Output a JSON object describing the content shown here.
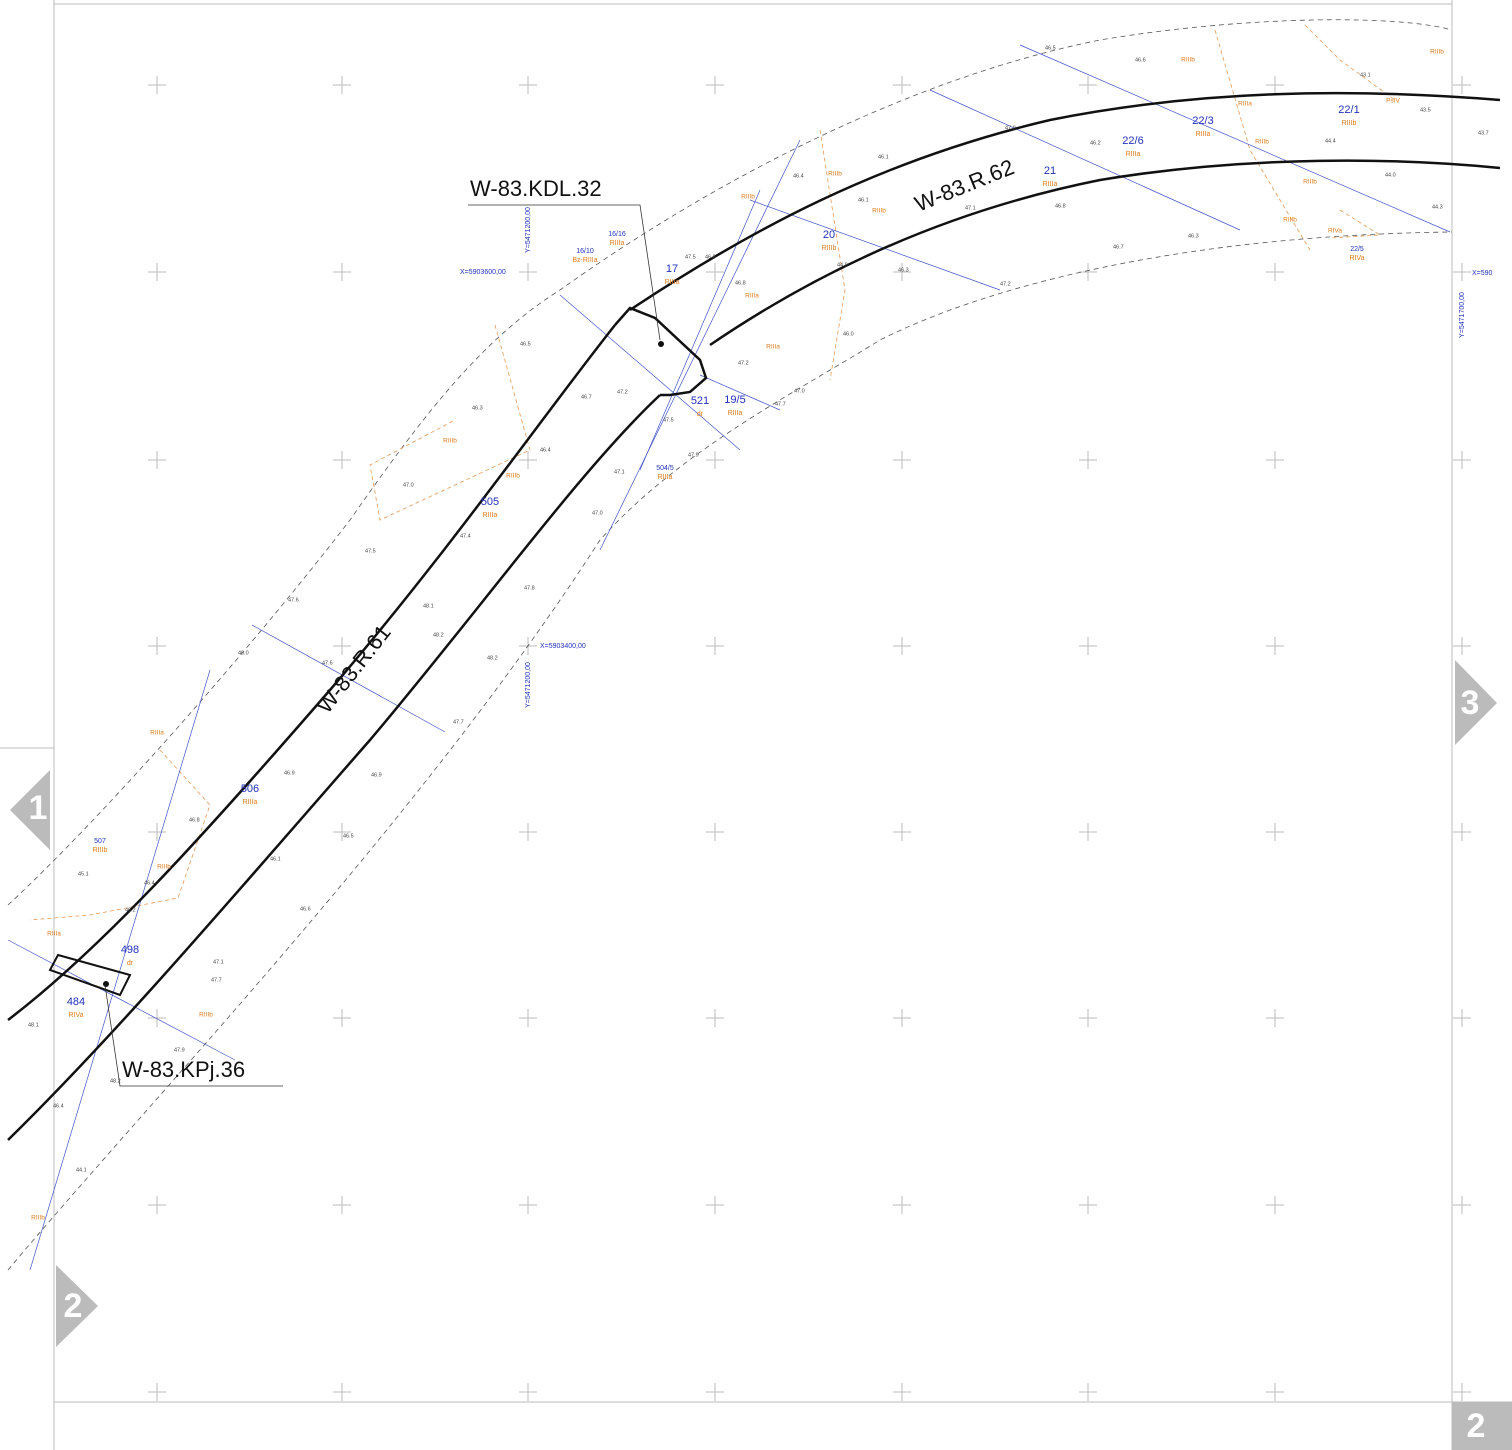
{
  "labels": {
    "objects": [
      "W-83.KDL.32",
      "W-83.KPj.36"
    ],
    "roads": [
      "W-83.R.62",
      "W-83.R.61"
    ]
  },
  "parcels": [
    {
      "number": "505",
      "class": "RIIIa"
    },
    {
      "number": "506",
      "class": "RIIIa"
    },
    {
      "number": "20",
      "class": "RIIIb"
    },
    {
      "number": "21",
      "class": "RIIIa"
    },
    {
      "number": "22/6",
      "class": "RIIIa"
    },
    {
      "number": "22/3",
      "class": "RIIIa"
    },
    {
      "number": "22/1",
      "class": "RIIIb"
    },
    {
      "number": "17",
      "class": "RIIIa"
    },
    {
      "number": "521",
      "class": "dr"
    },
    {
      "number": "19/5",
      "class": "RIIIa"
    },
    {
      "number": "504/5",
      "class": "RIIIa"
    },
    {
      "number": "498",
      "class": "dr"
    },
    {
      "number": "484",
      "class": "RIVa"
    },
    {
      "number": "507",
      "class": "RIIIb"
    },
    {
      "number": "16/16",
      "class": "RIIIa"
    },
    {
      "number": "16/10",
      "class": "Bz-RIIIa"
    },
    {
      "number": "22/5",
      "class": "RIVa"
    }
  ],
  "elevations": [
    "46.5",
    "46.6",
    "47.0",
    "46.2",
    "46.1",
    "46.4",
    "46.1",
    "47.1",
    "46.8",
    "44.9",
    "46.3",
    "47.2",
    "46.7",
    "46.3",
    "44.4",
    "44.0",
    "44.3",
    "43.5",
    "43.7",
    "43.1",
    "47.5",
    "46.8",
    "46.8",
    "46.5",
    "46.3",
    "46.7",
    "47.2",
    "46.4",
    "47.0",
    "47.1",
    "47.5",
    "47.9",
    "47.0",
    "47.4",
    "47.5",
    "47.6",
    "47.8",
    "48.1",
    "48.2",
    "48.2",
    "46.0",
    "47.6",
    "47.7",
    "47.2",
    "47.0",
    "47.7",
    "46.0",
    "46.9",
    "46.9",
    "46.8",
    "46.5",
    "46.1",
    "46.4",
    "46.2",
    "46.6",
    "45.1",
    "47.1",
    "47.7",
    "47.9",
    "48.2",
    "48.1",
    "46.4",
    "44.1"
  ],
  "classes": [
    "RIIIb",
    "RIIIb",
    "RIIIa",
    "RIIIb",
    "RIIIa",
    "RIIIb",
    "RIIIb",
    "RIIIb",
    "RIIIb",
    "RIIIb",
    "RIIIa",
    "RIIIa",
    "RIIIa",
    "RIIIb",
    "RIIIb",
    "RIIIb",
    "RIIIb",
    "PsIV",
    "RIVa",
    "RIIIb"
  ],
  "coordinates": [
    "X=5903600,00",
    "Y=5471200,00",
    "X=5903400,00",
    "Y=5471200,00",
    "Y=5471700,00",
    "X=590"
  ],
  "navigation": {
    "left": "1",
    "right": "3",
    "bottom": "2",
    "corner": "2"
  }
}
